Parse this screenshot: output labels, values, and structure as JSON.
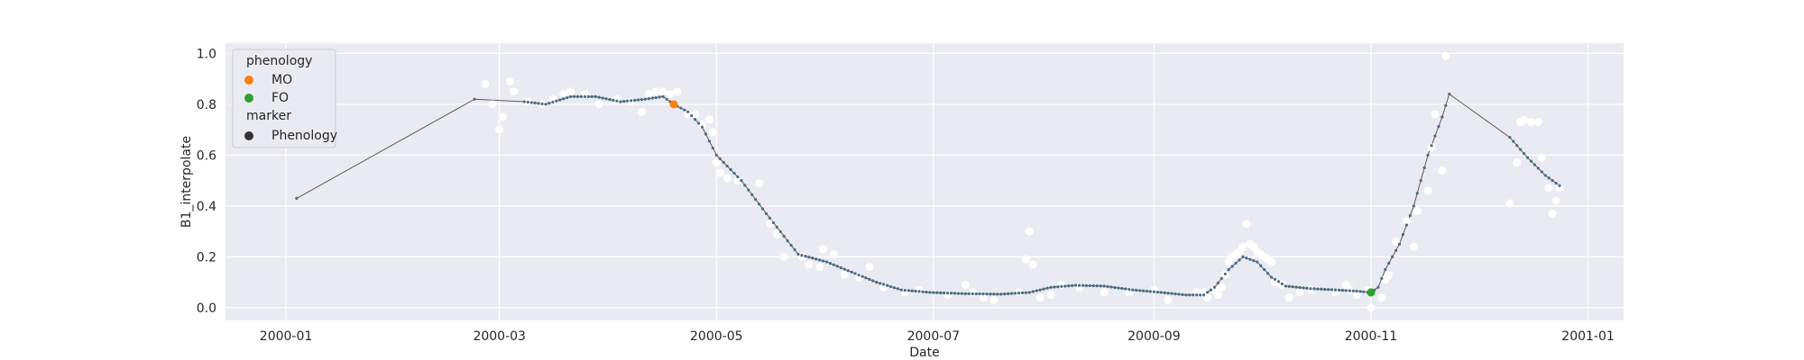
{
  "chart_data": {
    "type": "scatter",
    "xlabel": "Date",
    "ylabel": "B1_interpolate",
    "xlim": [
      "1999-12-15",
      "2001-01-11"
    ],
    "ylim": [
      -0.05,
      1.04
    ],
    "x_ticks": [
      "2000-01",
      "2000-03",
      "2000-05",
      "2000-07",
      "2000-09",
      "2000-11",
      "2001-01"
    ],
    "y_ticks": [
      0.0,
      0.2,
      0.4,
      0.6,
      0.8,
      1.0
    ],
    "y_tick_labels": [
      "0.0",
      "0.2",
      "0.4",
      "0.6",
      "0.8",
      "1.0"
    ],
    "grid": true,
    "legend_position": "top-left",
    "colors": {
      "background": "#eaeaf2",
      "grid": "#ffffff",
      "raw_points": "#ffffff",
      "line": "#5a5a5a",
      "phenology": "#4c6e80",
      "MO": "#ff7f0e",
      "FO": "#2ca02c",
      "marker_legend": "#333333"
    },
    "legend": {
      "title_hue": "phenology",
      "hue_items": [
        {
          "label": "MO",
          "color": "#ff7f0e"
        },
        {
          "label": "FO",
          "color": "#2ca02c"
        }
      ],
      "title_marker": "marker",
      "marker_items": [
        {
          "label": "Phenology",
          "color": "#333333"
        }
      ]
    },
    "raw_points": [
      [
        "2000-02-26",
        0.88
      ],
      [
        "2000-02-28",
        0.8
      ],
      [
        "2000-03-01",
        0.7
      ],
      [
        "2000-03-02",
        0.75
      ],
      [
        "2000-03-04",
        0.89
      ],
      [
        "2000-03-05",
        0.85
      ],
      [
        "2000-03-09",
        0.81
      ],
      [
        "2000-03-13",
        0.8
      ],
      [
        "2000-03-16",
        0.82
      ],
      [
        "2000-03-19",
        0.84
      ],
      [
        "2000-03-21",
        0.85
      ],
      [
        "2000-03-25",
        0.84
      ],
      [
        "2000-03-29",
        0.8
      ],
      [
        "2000-04-03",
        0.82
      ],
      [
        "2000-04-07",
        0.81
      ],
      [
        "2000-04-10",
        0.77
      ],
      [
        "2000-04-12",
        0.84
      ],
      [
        "2000-04-14",
        0.85
      ],
      [
        "2000-04-16",
        0.85
      ],
      [
        "2000-04-18",
        0.84
      ],
      [
        "2000-04-20",
        0.85
      ],
      [
        "2000-04-23",
        0.76
      ],
      [
        "2000-04-25",
        0.76
      ],
      [
        "2000-04-27",
        0.72
      ],
      [
        "2000-04-29",
        0.74
      ],
      [
        "2000-04-30",
        0.69
      ],
      [
        "2000-05-01",
        0.57
      ],
      [
        "2000-05-02",
        0.53
      ],
      [
        "2000-05-04",
        0.51
      ],
      [
        "2000-05-07",
        0.5
      ],
      [
        "2000-05-13",
        0.49
      ],
      [
        "2000-05-16",
        0.33
      ],
      [
        "2000-05-18",
        0.29
      ],
      [
        "2000-05-20",
        0.2
      ],
      [
        "2000-05-25",
        0.2
      ],
      [
        "2000-05-27",
        0.17
      ],
      [
        "2000-05-30",
        0.16
      ],
      [
        "2000-05-31",
        0.23
      ],
      [
        "2000-06-03",
        0.21
      ],
      [
        "2000-06-06",
        0.13
      ],
      [
        "2000-06-10",
        0.12
      ],
      [
        "2000-06-13",
        0.16
      ],
      [
        "2000-06-17",
        0.08
      ],
      [
        "2000-06-23",
        0.06
      ],
      [
        "2000-06-27",
        0.07
      ],
      [
        "2000-07-05",
        0.05
      ],
      [
        "2000-07-10",
        0.09
      ],
      [
        "2000-07-12",
        0.06
      ],
      [
        "2000-07-15",
        0.04
      ],
      [
        "2000-07-18",
        0.03
      ],
      [
        "2000-07-25",
        0.06
      ],
      [
        "2000-07-27",
        0.19
      ],
      [
        "2000-07-28",
        0.3
      ],
      [
        "2000-07-29",
        0.17
      ],
      [
        "2000-07-31",
        0.04
      ],
      [
        "2000-08-03",
        0.05
      ],
      [
        "2000-08-06",
        0.09
      ],
      [
        "2000-08-11",
        0.08
      ],
      [
        "2000-08-18",
        0.06
      ],
      [
        "2000-08-25",
        0.06
      ],
      [
        "2000-09-01",
        0.07
      ],
      [
        "2000-09-05",
        0.03
      ],
      [
        "2000-09-13",
        0.06
      ],
      [
        "2000-09-15",
        0.06
      ],
      [
        "2000-09-16",
        0.04
      ],
      [
        "2000-09-18",
        0.07
      ],
      [
        "2000-09-19",
        0.05
      ],
      [
        "2000-09-20",
        0.08
      ],
      [
        "2000-09-21",
        0.13
      ],
      [
        "2000-09-22",
        0.18
      ],
      [
        "2000-09-23",
        0.2
      ],
      [
        "2000-09-24",
        0.21
      ],
      [
        "2000-09-25",
        0.22
      ],
      [
        "2000-09-26",
        0.24
      ],
      [
        "2000-09-27",
        0.33
      ],
      [
        "2000-09-28",
        0.25
      ],
      [
        "2000-09-29",
        0.24
      ],
      [
        "2000-09-30",
        0.22
      ],
      [
        "2000-10-01",
        0.21
      ],
      [
        "2000-10-02",
        0.2
      ],
      [
        "2000-10-03",
        0.19
      ],
      [
        "2000-10-04",
        0.18
      ],
      [
        "2000-10-05",
        0.1
      ],
      [
        "2000-10-07",
        0.09
      ],
      [
        "2000-10-09",
        0.04
      ],
      [
        "2000-10-12",
        0.06
      ],
      [
        "2000-10-15",
        0.07
      ],
      [
        "2000-10-22",
        0.06
      ],
      [
        "2000-10-25",
        0.09
      ],
      [
        "2000-10-26",
        0.07
      ],
      [
        "2000-10-28",
        0.05
      ],
      [
        "2000-10-31",
        0.07
      ],
      [
        "2000-11-01",
        0.0
      ],
      [
        "2000-11-04",
        0.04
      ],
      [
        "2000-11-05",
        0.11
      ],
      [
        "2000-11-06",
        0.13
      ],
      [
        "2000-11-08",
        0.26
      ],
      [
        "2000-11-11",
        0.34
      ],
      [
        "2000-11-13",
        0.24
      ],
      [
        "2000-11-14",
        0.38
      ],
      [
        "2000-11-17",
        0.46
      ],
      [
        "2000-11-18",
        0.63
      ],
      [
        "2000-11-19",
        0.76
      ],
      [
        "2000-11-21",
        0.54
      ],
      [
        "2000-11-22",
        0.99
      ],
      [
        "2000-12-10",
        0.41
      ],
      [
        "2000-12-12",
        0.57
      ],
      [
        "2000-12-13",
        0.73
      ],
      [
        "2000-12-14",
        0.74
      ],
      [
        "2000-12-16",
        0.73
      ],
      [
        "2000-12-18",
        0.73
      ],
      [
        "2000-12-19",
        0.59
      ],
      [
        "2000-12-21",
        0.47
      ],
      [
        "2000-12-22",
        0.37
      ],
      [
        "2000-12-23",
        0.42
      ],
      [
        "2000-12-24",
        0.47
      ]
    ],
    "phenology_line": [
      [
        "2000-01-04",
        0.43
      ],
      [
        "2000-02-23",
        0.82
      ],
      [
        "2000-03-08",
        0.81
      ],
      [
        "2000-03-14",
        0.8
      ],
      [
        "2000-03-21",
        0.83
      ],
      [
        "2000-03-28",
        0.83
      ],
      [
        "2000-04-04",
        0.81
      ],
      [
        "2000-04-11",
        0.82
      ],
      [
        "2000-04-16",
        0.83
      ],
      [
        "2000-04-19",
        0.8
      ],
      [
        "2000-04-23",
        0.77
      ],
      [
        "2000-04-27",
        0.71
      ],
      [
        "2000-05-01",
        0.6
      ],
      [
        "2000-05-08",
        0.5
      ],
      [
        "2000-05-15",
        0.37
      ],
      [
        "2000-05-24",
        0.21
      ],
      [
        "2000-06-01",
        0.18
      ],
      [
        "2000-06-08",
        0.14
      ],
      [
        "2000-06-15",
        0.1
      ],
      [
        "2000-06-22",
        0.07
      ],
      [
        "2000-06-30",
        0.06
      ],
      [
        "2000-07-10",
        0.055
      ],
      [
        "2000-07-20",
        0.053
      ],
      [
        "2000-07-28",
        0.06
      ],
      [
        "2000-08-03",
        0.08
      ],
      [
        "2000-08-10",
        0.088
      ],
      [
        "2000-08-18",
        0.085
      ],
      [
        "2000-08-26",
        0.07
      ],
      [
        "2000-09-03",
        0.06
      ],
      [
        "2000-09-10",
        0.05
      ],
      [
        "2000-09-15",
        0.05
      ],
      [
        "2000-09-18",
        0.08
      ],
      [
        "2000-09-22",
        0.15
      ],
      [
        "2000-09-26",
        0.2
      ],
      [
        "2000-09-30",
        0.18
      ],
      [
        "2000-10-04",
        0.12
      ],
      [
        "2000-10-08",
        0.085
      ],
      [
        "2000-10-15",
        0.075
      ],
      [
        "2000-10-22",
        0.07
      ],
      [
        "2000-10-28",
        0.065
      ],
      [
        "2000-11-01",
        0.06
      ],
      [
        "2000-11-03",
        0.08
      ],
      [
        "2000-11-05",
        0.15
      ],
      [
        "2000-11-09",
        0.25
      ],
      [
        "2000-11-13",
        0.4
      ],
      [
        "2000-11-17",
        0.6
      ],
      [
        "2000-11-21",
        0.75
      ],
      [
        "2000-11-23",
        0.84
      ],
      [
        "2000-12-10",
        0.67
      ],
      [
        "2000-12-15",
        0.59
      ],
      [
        "2000-12-20",
        0.52
      ],
      [
        "2000-12-24",
        0.48
      ]
    ],
    "phenology_events": [
      {
        "label": "MO",
        "date": "2000-04-19",
        "y": 0.8,
        "color": "#ff7f0e"
      },
      {
        "label": "FO",
        "date": "2000-11-01",
        "y": 0.06,
        "color": "#2ca02c"
      }
    ]
  }
}
